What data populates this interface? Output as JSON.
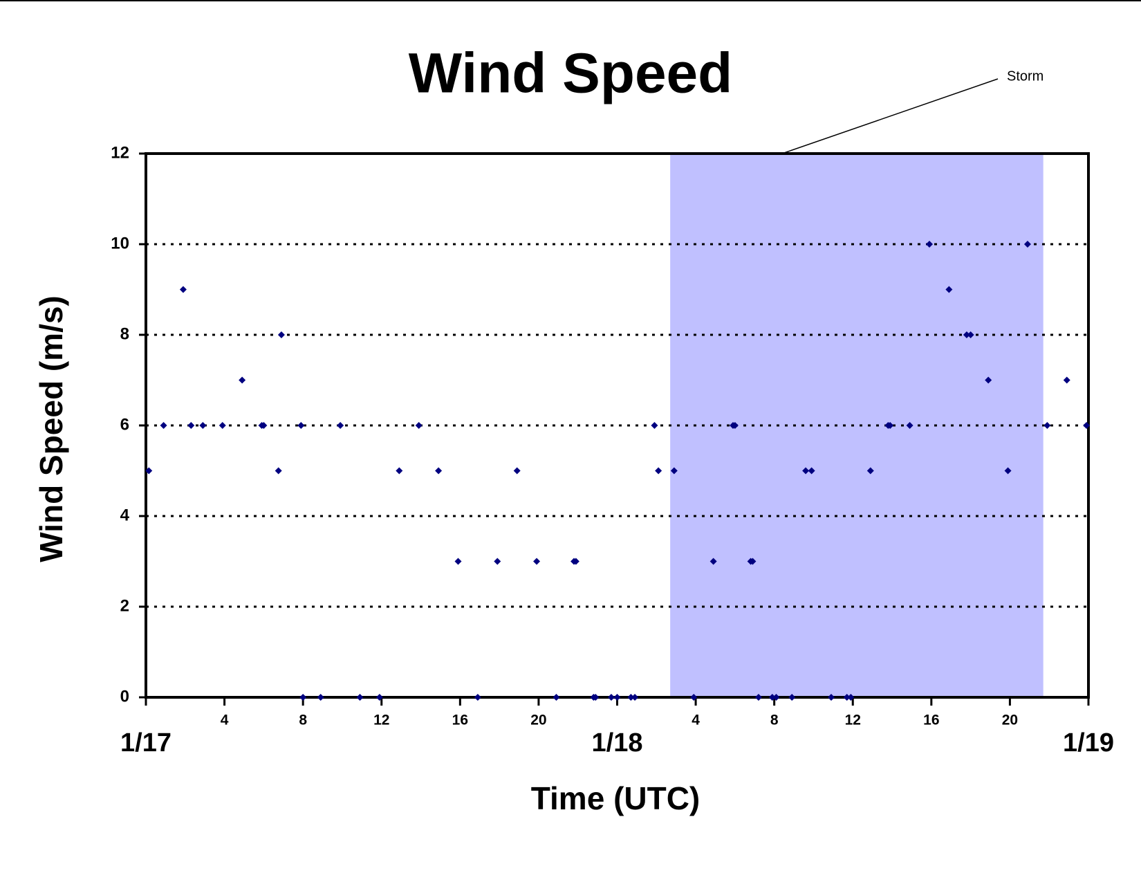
{
  "chart_data": {
    "type": "scatter",
    "title": "Wind Speed",
    "x_label": "Time (UTC)",
    "y_label": "Wind Speed (m/s)",
    "series": [
      {
        "color": "#000080",
        "x": [
          0.15,
          0.9,
          1.9,
          2.3,
          2.9,
          3.9,
          4.9,
          5.9,
          6.0,
          6.75,
          6.9,
          7.9,
          8.0,
          8.9,
          9.9,
          10.9,
          11.9,
          12.9,
          13.9,
          14.9,
          15.9,
          16.9,
          17.9,
          18.9,
          19.9,
          20.9,
          21.8,
          21.9,
          22.8,
          22.9,
          23.7,
          24.0,
          24.7,
          24.9,
          25.9,
          26.1,
          26.9,
          27.9,
          28.9,
          29.9,
          30.0,
          30.8,
          30.9,
          31.2,
          31.9,
          32.1,
          32.9,
          33.6,
          33.9,
          34.9,
          35.7,
          35.9,
          36.9,
          37.8,
          37.9,
          38.9,
          39.9,
          40.9,
          41.8,
          42.0,
          42.9,
          43.9,
          44.9,
          45.9,
          46.9,
          47.9
        ],
        "values": [
          5,
          6,
          9,
          6,
          6,
          6,
          7,
          6,
          6,
          5,
          8,
          6,
          0,
          0,
          6,
          0,
          0,
          5,
          6,
          5,
          3,
          0,
          3,
          5,
          3,
          0,
          3,
          3,
          0,
          0,
          0,
          0,
          0,
          0,
          6,
          5,
          5,
          0,
          3,
          6,
          6,
          3,
          3,
          0,
          0,
          0,
          0,
          5,
          5,
          0,
          0,
          0,
          5,
          6,
          6,
          6,
          10,
          9,
          8,
          8,
          7,
          5,
          10,
          6,
          7,
          6
        ]
      }
    ],
    "xlim": [
      0,
      48
    ],
    "xticks": [
      {
        "value": 0,
        "label": "1/17"
      },
      4,
      8,
      12,
      16,
      20,
      {
        "value": 24,
        "label": "1/18"
      },
      {
        "value": 28,
        "label": "4"
      },
      {
        "value": 32,
        "label": "8"
      },
      {
        "value": 36,
        "label": "12"
      },
      {
        "value": 40,
        "label": "16"
      },
      {
        "value": 44,
        "label": "20"
      },
      {
        "value": 48,
        "label": "1/19"
      }
    ],
    "ylim": [
      0,
      12
    ],
    "yticks": [
      0,
      2,
      4,
      6,
      8,
      10,
      12
    ],
    "grid": true,
    "shaded_region": {
      "label": "Storm",
      "x": [
        26.7,
        45.7
      ],
      "color": "#c0c0ff"
    }
  }
}
